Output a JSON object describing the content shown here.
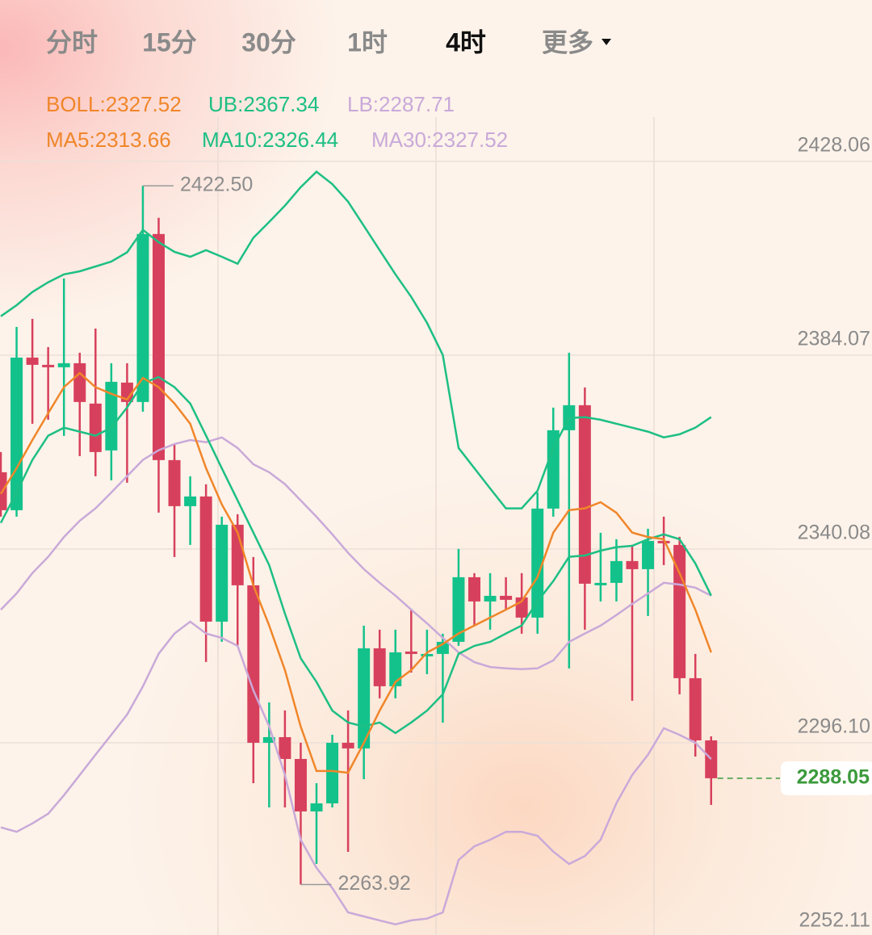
{
  "tabs": [
    "分时",
    "15分",
    "30分",
    "1时",
    "4时",
    "更多"
  ],
  "active_tab": "4时",
  "indicators": [
    [
      {
        "name": "BOLL:",
        "value": 2327.52,
        "color": "#f0862a"
      },
      {
        "name": "UB:",
        "value": 2367.34,
        "color": "#1dbf84"
      },
      {
        "name": "LB:",
        "value": 2287.71,
        "color": "#c9a9d9"
      }
    ],
    [
      {
        "name": "MA5:",
        "value": 2313.66,
        "color": "#f0862a"
      },
      {
        "name": "MA10:",
        "value": 2326.44,
        "color": "#1dbf84"
      },
      {
        "name": "MA30:",
        "value": 2327.52,
        "color": "#c9a9d9"
      }
    ]
  ],
  "chart_data": {
    "type": "candlestick",
    "up_color": "#13c28b",
    "down_color": "#d7405c",
    "ylim": [
      2252.11,
      2438.1
    ],
    "yticks": [
      2252.11,
      {
        "value": 2296.1,
        "label": "2296.10"
      },
      2340.08,
      2384.07,
      2428.06
    ],
    "grid": true,
    "open": [
      2357.5,
      2348.88,
      2383.52,
      2381.87,
      2381.32,
      2382.24,
      2373.08,
      2362.45,
      2377.84,
      2373.44,
      2411.56,
      2360.25,
      2349.8,
      2352,
      2323.59,
      2345.58,
      2331.84,
      2296.1,
      2297.38,
      2292.43,
      2280.52,
      2282.35,
      2296.1,
      2294.82,
      2317.54,
      2308.93,
      2316.81,
      2315.71,
      2316.26,
      2319.01,
      2333.67,
      2328.17,
      2329.45,
      2329.09,
      2324.51,
      2349.25,
      2367.03,
      2372.71,
      2332.02,
      2332.39,
      2337.34,
      2335.5,
      2341.92,
      2341,
      2310.76,
      2296.65
    ],
    "high": [
      2362.08,
      2390.49,
      2392.32,
      2385.91,
      2401.48,
      2384.62,
      2390.12,
      2382.24,
      2382.24,
      2422.5,
      2415.23,
      2363.91,
      2356.58,
      2354.75,
      2347.42,
      2347.97,
      2338.25,
      2305.26,
      2303.43,
      2296.1,
      2286.93,
      2297.93,
      2303.43,
      2322.67,
      2321.76,
      2321.76,
      2326.34,
      2321.76,
      2320.84,
      2340.09,
      2334.59,
      2334.59,
      2333.67,
      2334.59,
      2352.92,
      2372.16,
      2384.62,
      2376.74,
      2343.75,
      2342.28,
      2341,
      2344.67,
      2347.42,
      2342.83,
      2316.26,
      2297.56
    ],
    "low": [
      2347.42,
      2347.42,
      2368.49,
      2369.41,
      2365.74,
      2361.16,
      2356.58,
      2355.66,
      2355.11,
      2371.24,
      2348.33,
      2338.25,
      2341,
      2314.43,
      2319.01,
      2318.09,
      2286.93,
      2281.44,
      2281.44,
      2263.92,
      2268.61,
      2281.44,
      2271.36,
      2287.85,
      2306.18,
      2306.18,
      2312.04,
      2311.68,
      2300.68,
      2318.09,
      2322.67,
      2321.76,
      2326.34,
      2320.84,
      2320.84,
      2347.42,
      2312.96,
      2321.76,
      2328.17,
      2328.17,
      2305.63,
      2324.87,
      2336.42,
      2307.1,
      2292.98,
      2281.99
    ],
    "close": [
      2348.88,
      2383.52,
      2381.87,
      2381.32,
      2382.24,
      2373.44,
      2362.08,
      2378.02,
      2373.44,
      2411.56,
      2360.25,
      2349.8,
      2352,
      2323.59,
      2345.58,
      2331.84,
      2296.1,
      2297.38,
      2292.43,
      2280.52,
      2282.35,
      2296.1,
      2294.82,
      2317.54,
      2308.93,
      2316.63,
      2316.26,
      2316.26,
      2319.01,
      2333.67,
      2328.17,
      2329.45,
      2328.54,
      2324.51,
      2349.25,
      2367.03,
      2372.71,
      2332.2,
      2332.39,
      2337.34,
      2335.5,
      2341.92,
      2341.37,
      2310.76,
      2296.65,
      2288.05
    ],
    "lines": [
      {
        "color": "#1dbf84",
        "values": [
          2392.9,
          2395.4,
          2398.4,
          2400.6,
          2402.4,
          2403.1,
          2404.2,
          2405.3,
          2407.4,
          2412.5,
          2409.7,
          2407.5,
          2406.4,
          2407.9,
          2406.4,
          2404.8,
          2410.7,
          2414.3,
          2418.0,
          2422.2,
          2425.7,
          2422.9,
          2418.9,
          2413.4,
          2407.9,
          2402.4,
          2397.3,
          2391.4,
          2384.1,
          2363.0,
          2358.4,
          2353.8,
          2349.3,
          2349.3,
          2353.3,
          2363.0,
          2369.8,
          2370.0,
          2369.4,
          2368.5,
          2367.6,
          2366.7,
          2365.4,
          2366.1,
          2367.6,
          2370.0
        ]
      },
      {
        "color": "#c9a9d9",
        "values": [
          2276.9,
          2275.9,
          2277.8,
          2280.0,
          2284.2,
          2288.8,
          2293.4,
          2297.9,
          2302.5,
          2308.9,
          2316.3,
          2320.9,
          2323.6,
          2320.9,
          2319.9,
          2318.1,
          2308.0,
          2299.8,
          2288.8,
          2274.1,
          2267.7,
          2263.1,
          2257.6,
          2256.7,
          2255.8,
          2254.9,
          2255.8,
          2256.2,
          2257.6,
          2269.5,
          2272.6,
          2274.1,
          2275.9,
          2275.9,
          2275.0,
          2271.4,
          2268.6,
          2270.4,
          2274.1,
          2282.4,
          2288.8,
          2293.4,
          2299.4,
          2297.9,
          2296.1,
          2292.4
        ]
      },
      {
        "color": "#c9a9d9",
        "values": [
          2326.3,
          2330.0,
          2334.6,
          2338.3,
          2342.8,
          2346.5,
          2349.3,
          2352.9,
          2356.6,
          2360.3,
          2362.5,
          2363.9,
          2364.8,
          2364.3,
          2365.4,
          2363.0,
          2359.3,
          2357.5,
          2354.8,
          2351.1,
          2347.4,
          2343.4,
          2339.2,
          2335.5,
          2332.4,
          2329.5,
          2326.3,
          2323.2,
          2319.9,
          2316.6,
          2314.4,
          2313.3,
          2313.0,
          2312.8,
          2313.0,
          2314.8,
          2319.0,
          2320.9,
          2322.7,
          2325.1,
          2327.6,
          2330.0,
          2332.4,
          2332.0,
          2331.3,
          2329.5
        ]
      },
      {
        "color": "#1dbf84",
        "values": [
          2346.0,
          2352.9,
          2360.3,
          2365.8,
          2367.6,
          2366.7,
          2365.8,
          2367.6,
          2372.2,
          2377.7,
          2379.1,
          2376.8,
          2373.1,
          2365.8,
          2358.4,
          2351.1,
          2343.8,
          2336.4,
          2325.4,
          2315.3,
          2309.9,
          2303.4,
          2300.7,
          2299.8,
          2300.7,
          2298.3,
          2300.7,
          2303.4,
          2307.1,
          2316.3,
          2318.1,
          2319.0,
          2320.9,
          2322.7,
          2328.2,
          2332.8,
          2338.3,
          2338.6,
          2339.7,
          2340.5,
          2340.8,
          2342.3,
          2343.4,
          2342.3,
          2336.8,
          2329.5
        ]
      },
      {
        "color": "#f0862a",
        "values": [
          2352.6,
          2358.4,
          2364.8,
          2370.9,
          2376.8,
          2380.0,
          2376.8,
          2375.3,
          2374.0,
          2378.9,
          2376.8,
          2373.1,
          2368.5,
          2358.4,
          2350.2,
          2343.8,
          2331.8,
          2322.7,
          2312.6,
          2299.8,
          2289.7,
          2289.7,
          2289.3,
          2296.1,
          2303.4,
          2309.9,
          2312.6,
          2316.6,
          2318.5,
          2320.9,
          2322.7,
          2324.5,
          2326.3,
          2328.2,
          2333.7,
          2343.8,
          2348.9,
          2349.3,
          2350.7,
          2348.3,
          2343.8,
          2342.8,
          2342.3,
          2334.6,
          2326.3,
          2316.6
        ]
      }
    ],
    "high_label": {
      "value": 2422.5,
      "label": "2422.50"
    },
    "low_label": 2263.92,
    "last_price": 2288.05,
    "last_price_color": "#3c9a3c"
  }
}
